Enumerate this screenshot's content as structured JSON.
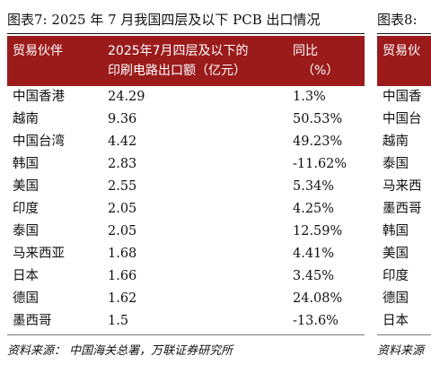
{
  "left": {
    "title": "图表7:  2025 年 7 月我国四层及以下 PCB 出口情况",
    "headers": [
      "贸易伙伴",
      "2025年7月四层及以下的印刷电路出口额（亿元）",
      "同比",
      "（%）"
    ],
    "header_value_line1": "2025年7月四层及以下的",
    "header_value_line2": "印刷电路出口额（亿元）",
    "rows": [
      {
        "partner": "中国香港",
        "value": "24.29",
        "yoy": "1.3%"
      },
      {
        "partner": "越南",
        "value": "9.36",
        "yoy": "50.53%"
      },
      {
        "partner": "中国台湾",
        "value": "4.42",
        "yoy": "49.23%"
      },
      {
        "partner": "韩国",
        "value": "2.83",
        "yoy": "-11.62%"
      },
      {
        "partner": "美国",
        "value": "2.55",
        "yoy": "5.34%"
      },
      {
        "partner": "印度",
        "value": "2.05",
        "yoy": "4.25%"
      },
      {
        "partner": "泰国",
        "value": "2.05",
        "yoy": "12.59%"
      },
      {
        "partner": "马来西亚",
        "value": "1.68",
        "yoy": "4.41%"
      },
      {
        "partner": "日本",
        "value": "1.66",
        "yoy": "3.45%"
      },
      {
        "partner": "德国",
        "value": "1.62",
        "yoy": "24.08%"
      },
      {
        "partner": "墨西哥",
        "value": "1.5",
        "yoy": "-13.6%"
      }
    ],
    "source": "资料来源：  中国海关总署，万联证券研究所"
  },
  "right": {
    "title": "图表8:",
    "header": "贸易伙",
    "rows": [
      "中国香",
      "中国台",
      "越南",
      "泰国",
      "马来西",
      "墨西哥",
      "韩国",
      "美国",
      "印度",
      "德国",
      "日本"
    ],
    "source": "资料来源"
  },
  "colors": {
    "header_bg": "#9b1b1b",
    "header_text": "#ffffff"
  }
}
